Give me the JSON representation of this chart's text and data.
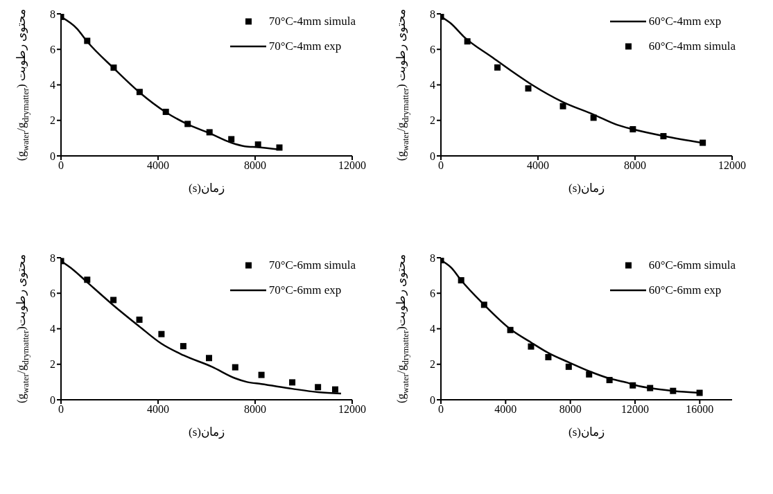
{
  "chart_data": [
    {
      "type": "line",
      "xlabel": "(s)زمان",
      "ylabel": "(g$_{water}$/g$_{drymatter}$) محتوی رطوبت",
      "xlim": [
        0,
        12000
      ],
      "xticks": [
        0,
        4000,
        8000,
        12000
      ],
      "ylim": [
        0,
        8
      ],
      "yticks": [
        0,
        2,
        4,
        6,
        8
      ],
      "legend": "top right",
      "series": [
        {
          "type": "scatter",
          "marker": "square",
          "name": "70°C-4mm simula",
          "color": "#000000",
          "x": [
            0,
            1080,
            2170,
            3240,
            4320,
            5220,
            6120,
            7020,
            8120,
            9000
          ],
          "values": [
            7.83,
            6.48,
            4.97,
            3.6,
            2.48,
            1.8,
            1.33,
            0.94,
            0.64,
            0.47
          ]
        },
        {
          "type": "line",
          "line_style": "solid",
          "name": "70°C-4mm exp",
          "color": "#000000",
          "x": [
            0,
            650,
            1080,
            2170,
            3240,
            4320,
            5220,
            6120,
            7020,
            7580,
            8120,
            9000
          ],
          "values": [
            7.83,
            7.18,
            6.44,
            4.94,
            3.57,
            2.46,
            1.78,
            1.28,
            0.74,
            0.54,
            0.49,
            0.36
          ]
        }
      ]
    },
    {
      "type": "line",
      "xlabel": "(s)زمان",
      "ylabel": "(g$_{water}$/g$_{drymatter}$) محتوی رطوبت",
      "xlim": [
        0,
        12000
      ],
      "xticks": [
        0,
        4000,
        8000,
        12000
      ],
      "ylim": [
        0,
        8
      ],
      "yticks": [
        0,
        2,
        4,
        6,
        8
      ],
      "legend": "top right",
      "series": [
        {
          "type": "line",
          "line_style": "solid",
          "name": "60°C-4mm exp",
          "color": "#000000",
          "x": [
            0,
            400,
            940,
            2130,
            2920,
            3770,
            5030,
            6290,
            7280,
            7910,
            9170,
            10790
          ],
          "values": [
            7.84,
            7.47,
            6.72,
            5.54,
            4.77,
            3.99,
            3.03,
            2.33,
            1.74,
            1.5,
            1.12,
            0.73
          ]
        },
        {
          "type": "scatter",
          "marker": "square",
          "name": "60°C-4mm simula",
          "color": "#000000",
          "x": [
            0,
            1090,
            2330,
            3600,
            5030,
            6290,
            7910,
            9170,
            10790
          ],
          "values": [
            7.84,
            6.45,
            4.98,
            3.8,
            2.8,
            2.15,
            1.5,
            1.11,
            0.74
          ]
        }
      ]
    },
    {
      "type": "line",
      "xlabel": "(s)زمان",
      "ylabel": "(g$_{water}$/g$_{drymatter}$)محتوی رطوبت",
      "xlim": [
        0,
        12000
      ],
      "xticks": [
        0,
        4000,
        8000,
        12000
      ],
      "ylim": [
        0,
        8
      ],
      "yticks": [
        0,
        2,
        4,
        6,
        8
      ],
      "legend": "top right",
      "series": [
        {
          "type": "scatter",
          "marker": "square",
          "name": "70°C-6mm simula",
          "color": "#000000",
          "x": [
            0,
            1080,
            2160,
            3230,
            4140,
            5040,
            6100,
            7180,
            8260,
            9530,
            10590,
            11300
          ],
          "values": [
            7.81,
            6.76,
            5.62,
            4.51,
            3.7,
            3.02,
            2.35,
            1.83,
            1.4,
            0.98,
            0.71,
            0.58
          ]
        },
        {
          "type": "line",
          "line_style": "solid",
          "name": "70°C-6mm exp",
          "color": "#000000",
          "x": [
            0,
            495,
            1080,
            2160,
            3230,
            4140,
            5040,
            6220,
            7180,
            7670,
            8260,
            9530,
            10590,
            11540
          ],
          "values": [
            7.81,
            7.33,
            6.62,
            5.32,
            4.13,
            3.16,
            2.51,
            1.86,
            1.21,
            1.0,
            0.89,
            0.62,
            0.43,
            0.35
          ]
        }
      ]
    },
    {
      "type": "line",
      "xlabel": "(s)زمان",
      "ylabel": "(g$_{water}$/g$_{drymatter}$)محتوی رطوبت",
      "xlim": [
        0,
        18000
      ],
      "xticks": [
        0,
        4000,
        8000,
        12000,
        16000
      ],
      "ylim": [
        0,
        8
      ],
      "yticks": [
        0,
        2,
        4,
        6,
        8
      ],
      "legend": "top right",
      "series": [
        {
          "type": "scatter",
          "marker": "square",
          "name": "60°C-6mm simula",
          "color": "#000000",
          "x": [
            0,
            1250,
            2670,
            4290,
            5570,
            6640,
            7900,
            9160,
            10420,
            11860,
            12930,
            14350,
            15990
          ],
          "values": [
            7.86,
            6.73,
            5.35,
            3.93,
            3.0,
            2.4,
            1.86,
            1.43,
            1.11,
            0.81,
            0.66,
            0.5,
            0.39
          ]
        },
        {
          "type": "line",
          "line_style": "solid",
          "name": "60°C-6mm exp",
          "color": "#000000",
          "x": [
            0,
            650,
            1250,
            2670,
            4290,
            5570,
            6640,
            7900,
            9160,
            10420,
            11530,
            11860,
            12930,
            14350,
            15990
          ],
          "values": [
            7.86,
            7.43,
            6.73,
            5.35,
            3.98,
            3.23,
            2.64,
            2.11,
            1.61,
            1.2,
            0.96,
            0.86,
            0.66,
            0.5,
            0.39
          ]
        }
      ]
    }
  ]
}
